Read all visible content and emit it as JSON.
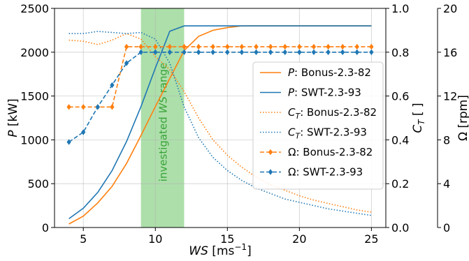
{
  "chart_data": {
    "type": "line",
    "xlabel": "WS [ms⁻¹]",
    "ylabel_left": "P [kW]",
    "ylabel_right1": "C_T [ ]",
    "ylabel_right2": "Ω [rpm]",
    "xlim": [
      3,
      26
    ],
    "ylim_power": [
      0,
      2500
    ],
    "ylim_ct": [
      0,
      1.0
    ],
    "ylim_omega": [
      0,
      20
    ],
    "xticks": [
      5,
      10,
      15,
      20,
      25
    ],
    "yticks_power": [
      0,
      500,
      1000,
      1500,
      2000,
      2500
    ],
    "yticks_ct": [
      "0.0",
      "0.2",
      "0.4",
      "0.6",
      "0.8",
      "1.0"
    ],
    "yticks_omega": [
      0,
      4,
      8,
      12,
      16,
      20
    ],
    "grid": true,
    "legend_position": "center-right",
    "shaded_region": {
      "x": [
        9,
        12
      ],
      "label": "investigated WS range",
      "color": "#9fd99b",
      "text_color": "#3aa33a"
    },
    "colors": {
      "orange": "#ff7f0e",
      "blue": "#1f77b4"
    },
    "series": [
      {
        "name": "P: Bonus-2.3-82",
        "axis": "power",
        "style": "solid",
        "color": "#ff7f0e",
        "x": [
          4,
          5,
          6,
          7,
          8,
          9,
          10,
          11,
          12,
          13,
          14,
          15,
          16,
          17,
          18,
          19,
          20,
          21,
          22,
          23,
          24,
          25
        ],
        "values": [
          40,
          130,
          280,
          470,
          730,
          1050,
          1380,
          1700,
          2020,
          2180,
          2250,
          2280,
          2300,
          2300,
          2300,
          2300,
          2300,
          2300,
          2300,
          2300,
          2300,
          2300
        ]
      },
      {
        "name": "P: SWT-2.3-93",
        "axis": "power",
        "style": "solid",
        "color": "#1f77b4",
        "x": [
          4,
          5,
          6,
          7,
          8,
          9,
          10,
          11,
          12,
          13,
          14,
          15,
          16,
          17,
          18,
          19,
          20,
          21,
          22,
          23,
          24,
          25
        ],
        "values": [
          100,
          220,
          400,
          650,
          980,
          1380,
          1820,
          2240,
          2300,
          2300,
          2300,
          2300,
          2300,
          2300,
          2300,
          2300,
          2300,
          2300,
          2300,
          2300,
          2300,
          2300
        ]
      },
      {
        "name": "C_T: Bonus-2.3-82",
        "axis": "ct",
        "style": "dotted",
        "color": "#ff7f0e",
        "x": [
          4,
          5,
          6,
          7,
          8,
          9,
          10,
          11,
          12,
          13,
          14,
          15,
          16,
          17,
          18,
          19,
          20,
          21,
          22,
          23,
          24,
          25
        ],
        "values": [
          0.855,
          0.85,
          0.835,
          0.855,
          0.885,
          0.86,
          0.78,
          0.72,
          0.62,
          0.5,
          0.4,
          0.33,
          0.275,
          0.23,
          0.195,
          0.17,
          0.145,
          0.125,
          0.11,
          0.095,
          0.08,
          0.07
        ]
      },
      {
        "name": "C_T: SWT-2.3-93",
        "axis": "ct",
        "style": "dotted",
        "color": "#1f77b4",
        "x": [
          4,
          5,
          6,
          7,
          8,
          9,
          10,
          11,
          12,
          13,
          14,
          15,
          16,
          17,
          18,
          19,
          20,
          21,
          22,
          23,
          24,
          25
        ],
        "values": [
          0.885,
          0.885,
          0.895,
          0.89,
          0.885,
          0.89,
          0.86,
          0.75,
          0.55,
          0.41,
          0.32,
          0.26,
          0.215,
          0.18,
          0.155,
          0.13,
          0.115,
          0.1,
          0.085,
          0.075,
          0.065,
          0.055
        ]
      },
      {
        "name": "Ω: Bonus-2.3-82",
        "axis": "omega",
        "style": "dashed-diamond",
        "color": "#ff7f0e",
        "x": [
          4,
          5,
          6,
          7,
          8,
          9,
          10,
          11,
          12,
          13,
          14,
          15,
          16,
          17,
          18,
          19,
          20,
          21,
          22,
          23,
          24,
          25
        ],
        "values": [
          11,
          11,
          11,
          11,
          16.5,
          16.5,
          16.5,
          16.5,
          16.5,
          16.5,
          16.5,
          16.5,
          16.5,
          16.5,
          16.5,
          16.5,
          16.5,
          16.5,
          16.5,
          16.5,
          16.5,
          16.5
        ]
      },
      {
        "name": "Ω: SWT-2.3-93",
        "axis": "omega",
        "style": "dashed-diamond",
        "color": "#1f77b4",
        "x": [
          4,
          5,
          6,
          7,
          8,
          9,
          10,
          11,
          12,
          13,
          14,
          15,
          16,
          17,
          18,
          19,
          20,
          21,
          22,
          23,
          24,
          25
        ],
        "values": [
          7.8,
          8.7,
          11,
          13,
          15,
          16,
          16,
          16,
          16,
          16,
          16,
          16,
          16,
          16,
          16,
          16,
          16,
          16,
          16,
          16,
          16,
          16
        ]
      }
    ]
  }
}
